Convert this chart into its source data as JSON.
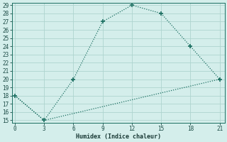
{
  "xlabel": "Humidex (Indice chaleur)",
  "line1_x": [
    0,
    3,
    6,
    9,
    12,
    15,
    18,
    21
  ],
  "line1_y": [
    18,
    15,
    20,
    27,
    29,
    28,
    24,
    20
  ],
  "line2_x": [
    0,
    3,
    21
  ],
  "line2_y": [
    18,
    15,
    20
  ],
  "line_color": "#1a6e60",
  "bg_color": "#d4eeeb",
  "grid_color": "#aed4cf",
  "xlim": [
    0,
    21
  ],
  "ylim": [
    15,
    29
  ],
  "xticks": [
    0,
    3,
    6,
    9,
    12,
    15,
    18,
    21
  ],
  "yticks": [
    15,
    16,
    17,
    18,
    19,
    20,
    21,
    22,
    23,
    24,
    25,
    26,
    27,
    28,
    29
  ],
  "marker": "+",
  "markersize": 4.5,
  "linewidth": 0.9,
  "tick_fontsize": 5.5,
  "xlabel_fontsize": 6.0
}
